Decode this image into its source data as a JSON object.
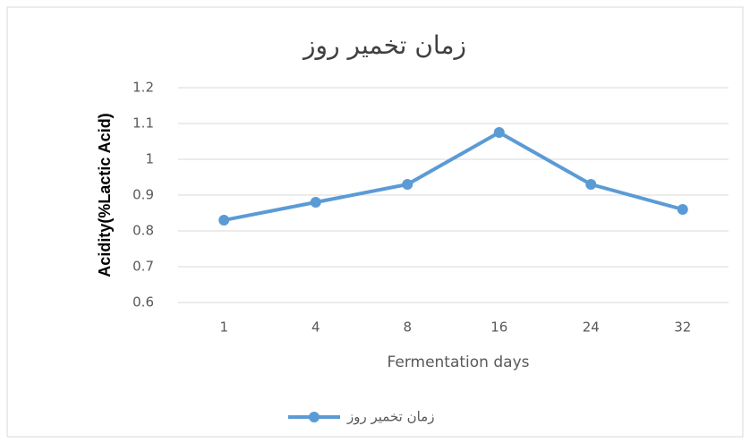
{
  "chart_data": {
    "type": "line",
    "title": "زمان تخمیر روز",
    "x_label": "Fermentation days",
    "y_label": "Acidity(%Lactic Acid)",
    "categories": [
      "1",
      "4",
      "8",
      "16",
      "24",
      "32"
    ],
    "series": [
      {
        "name": "زمان تخمیر روز",
        "color": "#5b9bd5",
        "values": [
          0.83,
          0.88,
          0.93,
          1.075,
          0.93,
          0.86
        ]
      }
    ],
    "ylim": [
      0.6,
      1.2
    ],
    "yticks": [
      0.6,
      0.7,
      0.8,
      0.9,
      1,
      1.1,
      1.2
    ],
    "grid": true,
    "legend": "bottom"
  }
}
